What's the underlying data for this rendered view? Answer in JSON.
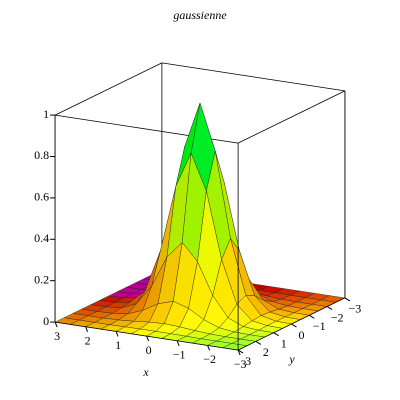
{
  "chart_data": {
    "type": "surface",
    "title": "gaussienne",
    "x_label": "x",
    "y_label": "y",
    "x": [
      -3,
      -2.5,
      -2,
      -1.5,
      -1,
      -0.5,
      0,
      0.5,
      1,
      1.5,
      2,
      2.5,
      3
    ],
    "y": [
      -3,
      -2.5,
      -2,
      -1.5,
      -1,
      -0.5,
      0,
      0.5,
      1,
      1.5,
      2,
      2.5,
      3
    ],
    "z": [
      [
        0,
        0,
        0,
        0,
        0,
        0,
        0,
        0,
        0,
        0,
        0,
        0,
        0
      ],
      [
        0,
        0,
        0,
        0,
        0.001,
        0.002,
        0.002,
        0.002,
        0.001,
        0,
        0,
        0,
        0
      ],
      [
        0,
        0,
        0,
        0.002,
        0.007,
        0.014,
        0.018,
        0.014,
        0.007,
        0.002,
        0,
        0,
        0
      ],
      [
        0,
        0,
        0.002,
        0.011,
        0.039,
        0.082,
        0.105,
        0.082,
        0.039,
        0.011,
        0.002,
        0,
        0
      ],
      [
        0,
        0.001,
        0.007,
        0.039,
        0.135,
        0.287,
        0.368,
        0.287,
        0.135,
        0.039,
        0.007,
        0.001,
        0
      ],
      [
        0,
        0.002,
        0.014,
        0.082,
        0.287,
        0.607,
        0.779,
        0.607,
        0.287,
        0.082,
        0.014,
        0.002,
        0
      ],
      [
        0,
        0.002,
        0.018,
        0.105,
        0.368,
        0.779,
        1,
        0.779,
        0.368,
        0.105,
        0.018,
        0.002,
        0
      ],
      [
        0,
        0.002,
        0.014,
        0.082,
        0.287,
        0.607,
        0.779,
        0.607,
        0.287,
        0.082,
        0.014,
        0.002,
        0
      ],
      [
        0,
        0.001,
        0.007,
        0.039,
        0.135,
        0.287,
        0.368,
        0.287,
        0.135,
        0.039,
        0.007,
        0.001,
        0
      ],
      [
        0,
        0,
        0.002,
        0.011,
        0.039,
        0.082,
        0.105,
        0.082,
        0.039,
        0.011,
        0.002,
        0,
        0
      ],
      [
        0,
        0,
        0,
        0.002,
        0.007,
        0.014,
        0.018,
        0.014,
        0.007,
        0.002,
        0,
        0,
        0
      ],
      [
        0,
        0,
        0,
        0,
        0.001,
        0.002,
        0.002,
        0.002,
        0.001,
        0,
        0,
        0,
        0
      ],
      [
        0,
        0,
        0,
        0,
        0,
        0,
        0,
        0,
        0,
        0,
        0,
        0,
        0
      ]
    ],
    "xlim": [
      -3,
      3
    ],
    "ylim": [
      -3,
      3
    ],
    "zlim": [
      0,
      1
    ],
    "xticks": [
      3,
      2,
      1,
      0,
      {
        "value": -1,
        "label": "−1"
      },
      {
        "value": -2,
        "label": "−2"
      },
      {
        "value": -3,
        "label": "−3"
      }
    ],
    "yticks": [
      3,
      2,
      1,
      0,
      {
        "value": -1,
        "label": "−1"
      },
      {
        "value": -2,
        "label": "−2"
      },
      {
        "value": -3,
        "label": "−3"
      }
    ],
    "zticks": [
      0,
      0.2,
      0.4,
      0.6,
      0.8,
      1
    ]
  }
}
